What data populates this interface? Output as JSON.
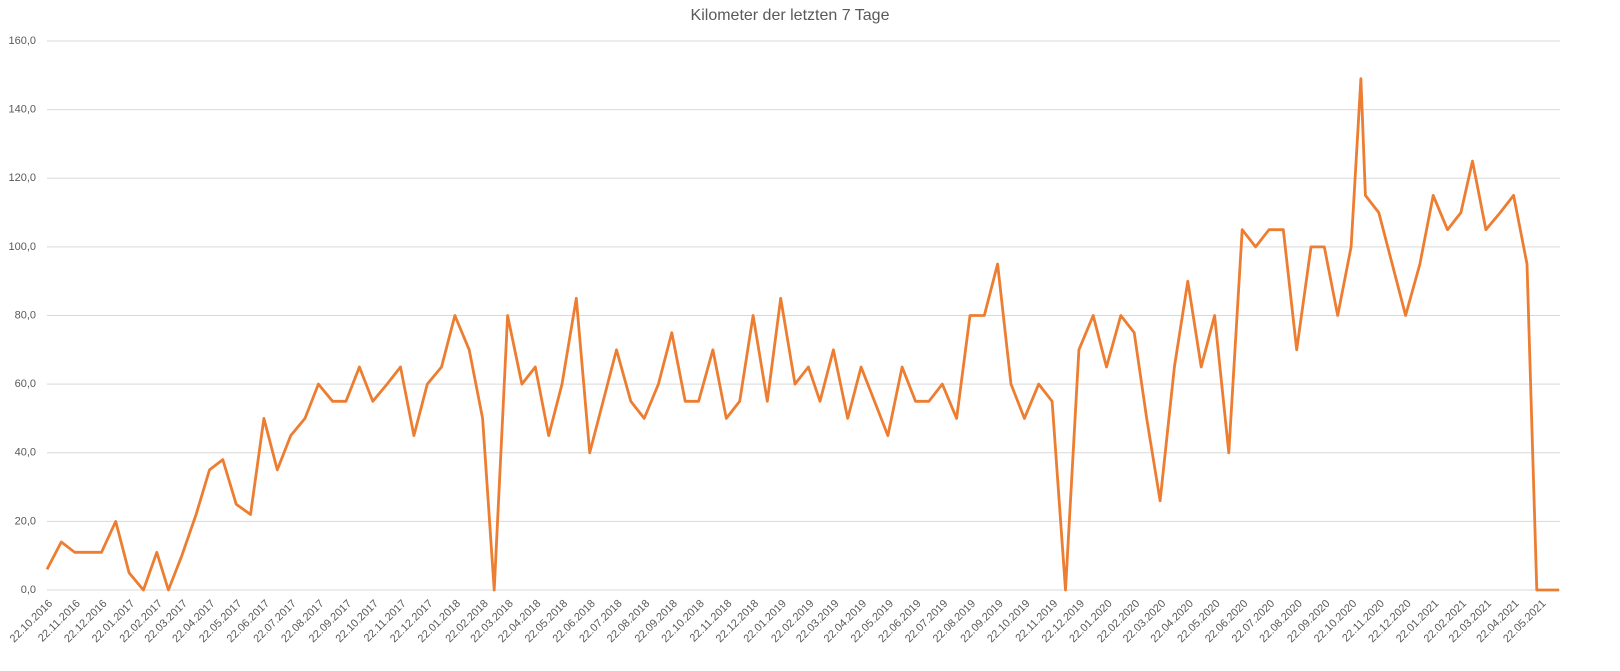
{
  "chart_data": {
    "type": "line",
    "title": "Kilometer der letzten 7 Tage",
    "x": [
      "22.10.2016",
      "07.11.2016",
      "22.11.2016",
      "07.12.2016",
      "22.12.2016",
      "07.01.2017",
      "22.01.2017",
      "07.02.2017",
      "22.02.2017",
      "07.03.2017",
      "22.03.2017",
      "07.04.2017",
      "22.04.2017",
      "07.05.2017",
      "22.05.2017",
      "07.06.2017",
      "22.06.2017",
      "07.07.2017",
      "22.07.2017",
      "07.08.2017",
      "22.08.2017",
      "07.09.2017",
      "22.09.2017",
      "07.10.2017",
      "22.10.2017",
      "07.11.2017",
      "22.11.2017",
      "07.12.2017",
      "22.12.2017",
      "07.01.2018",
      "22.01.2018",
      "07.02.2018",
      "22.02.2018",
      "07.03.2018",
      "22.03.2018",
      "07.04.2018",
      "22.04.2018",
      "07.05.2018",
      "22.05.2018",
      "07.06.2018",
      "22.06.2018",
      "07.07.2018",
      "22.07.2018",
      "07.08.2018",
      "22.08.2018",
      "07.09.2018",
      "22.09.2018",
      "07.10.2018",
      "22.10.2018",
      "07.11.2018",
      "22.11.2018",
      "07.12.2018",
      "22.12.2018",
      "07.01.2019",
      "22.01.2019",
      "07.02.2019",
      "22.02.2019",
      "07.03.2019",
      "22.03.2019",
      "07.04.2019",
      "22.04.2019",
      "07.05.2019",
      "22.05.2019",
      "07.06.2019",
      "22.06.2019",
      "07.07.2019",
      "22.07.2019",
      "07.08.2019",
      "22.08.2019",
      "07.09.2019",
      "22.09.2019",
      "07.10.2019",
      "22.10.2019",
      "07.11.2019",
      "22.11.2019",
      "07.12.2019",
      "22.12.2019",
      "07.01.2020",
      "22.01.2020",
      "07.02.2020",
      "22.02.2020",
      "07.03.2020",
      "22.03.2020",
      "07.04.2020",
      "22.04.2020",
      "07.05.2020",
      "22.05.2020",
      "07.06.2020",
      "22.06.2020",
      "07.07.2020",
      "22.07.2020",
      "07.08.2020",
      "22.08.2020",
      "07.09.2020",
      "22.09.2020",
      "07.10.2020",
      "22.10.2020",
      "02.11.2020",
      "07.11.2020",
      "22.11.2020",
      "07.12.2020",
      "22.12.2020",
      "07.01.2021",
      "22.01.2021",
      "07.02.2021",
      "22.02.2021",
      "07.03.2021",
      "22.03.2021",
      "07.04.2021",
      "22.04.2021",
      "07.05.2021",
      "18.05.2021",
      "22.05.2021",
      "12.06.2021"
    ],
    "series": [
      {
        "color": "#ed7d31",
        "values": [
          6,
          14,
          11,
          11,
          11,
          20,
          5,
          0,
          11,
          0,
          10,
          22,
          35,
          38,
          25,
          22,
          50,
          35,
          45,
          50,
          60,
          55,
          55,
          65,
          55,
          60,
          65,
          45,
          60,
          65,
          80,
          70,
          50,
          0,
          80,
          60,
          65,
          45,
          60,
          85,
          40,
          55,
          70,
          55,
          50,
          60,
          75,
          55,
          55,
          70,
          50,
          55,
          80,
          55,
          85,
          60,
          65,
          55,
          70,
          50,
          65,
          55,
          45,
          65,
          55,
          55,
          60,
          50,
          80,
          80,
          95,
          60,
          50,
          60,
          55,
          0,
          70,
          80,
          65,
          80,
          75,
          50,
          26,
          65,
          90,
          65,
          80,
          40,
          105,
          100,
          105,
          105,
          70,
          100,
          100,
          80,
          100,
          149,
          115,
          110,
          95,
          80,
          95,
          115,
          105,
          110,
          125,
          105,
          110,
          115,
          95,
          0,
          0,
          0
        ]
      }
    ],
    "xlim": [
      "22.10.2016",
      "13.06.2021"
    ],
    "xticks": [
      "22.10.2016",
      "22.11.2016",
      "22.12.2016",
      "22.01.2017",
      "22.02.2017",
      "22.03.2017",
      "22.04.2017",
      "22.05.2017",
      "22.06.2017",
      "22.07.2017",
      "22.08.2017",
      "22.09.2017",
      "22.10.2017",
      "22.11.2017",
      "22.12.2017",
      "22.01.2018",
      "22.02.2018",
      "22.03.2018",
      "22.04.2018",
      "22.05.2018",
      "22.06.2018",
      "22.07.2018",
      "22.08.2018",
      "22.09.2018",
      "22.10.2018",
      "22.11.2018",
      "22.12.2018",
      "22.01.2019",
      "22.02.2019",
      "22.03.2019",
      "22.04.2019",
      "22.05.2019",
      "22.06.2019",
      "22.07.2019",
      "22.08.2019",
      "22.09.2019",
      "22.10.2019",
      "22.11.2019",
      "22.12.2019",
      "22.01.2020",
      "22.02.2020",
      "22.03.2020",
      "22.04.2020",
      "22.05.2020",
      "22.06.2020",
      "22.07.2020",
      "22.08.2020",
      "22.09.2020",
      "22.10.2020",
      "22.11.2020",
      "22.12.2020",
      "22.01.2021",
      "22.02.2021",
      "22.03.2021",
      "22.04.2021",
      "22.05.2021"
    ],
    "ylim": [
      0,
      160
    ],
    "yticks": [
      {
        "value": 0,
        "label": "0,0"
      },
      {
        "value": 20,
        "label": "20,0"
      },
      {
        "value": 40,
        "label": "40,0"
      },
      {
        "value": 60,
        "label": "60,0"
      },
      {
        "value": 80,
        "label": "80,0"
      },
      {
        "value": 100,
        "label": "100,0"
      },
      {
        "value": 120,
        "label": "120,0"
      },
      {
        "value": 140,
        "label": "140,0"
      },
      {
        "value": 160,
        "label": "160,0"
      }
    ],
    "grid": true
  }
}
